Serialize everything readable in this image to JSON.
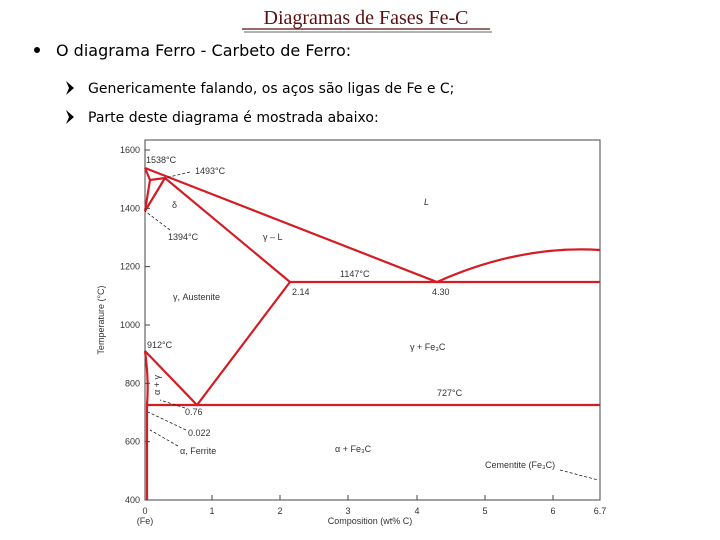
{
  "header": {
    "title": "Diagramas de Fases Fe-C"
  },
  "bullets": [
    {
      "text": "O diagrama Ferro - Carbeto de Ferro:",
      "items": [
        "Genericamente falando, os aços são ligas de Fe e C;",
        "Parte deste diagrama é mostrada abaixo:"
      ]
    }
  ],
  "figure": {
    "y_axis_label": "Temperature (°C)",
    "x_axis_label": "Composition (wt% C)",
    "x_origin_label": "(Fe)",
    "yticks": [
      "400",
      "600",
      "800",
      "1000",
      "1200",
      "1400",
      "1600"
    ],
    "xticks": [
      "0",
      "1",
      "2",
      "3",
      "4",
      "5",
      "6",
      "6.7"
    ],
    "labels": [
      "1538°C",
      "1493°C",
      "δ",
      "1394°C",
      "L",
      "γ – L",
      "1147°C",
      "2.14",
      "4.30",
      "γ, Austenite",
      "912°C",
      "γ + Fe₃C",
      "727°C",
      "α + γ",
      "0.76",
      "0.022",
      "α, Ferrite",
      "α + Fe₃C",
      "Cementite (Fe₃C)"
    ]
  }
}
